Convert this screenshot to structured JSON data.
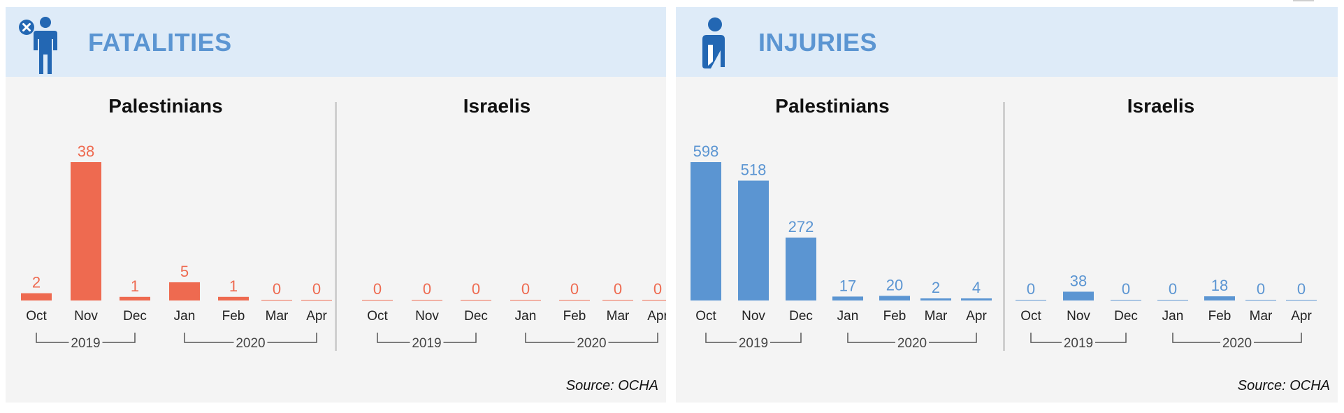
{
  "colors": {
    "fatalities": "#ee6a50",
    "injuries": "#5b95d2",
    "header_bg": "#deebf8",
    "panel_bg": "#f4f4f4",
    "title_blue": "#5b95d2",
    "icon_blue": "#2367b3"
  },
  "fatalities": {
    "title": "FATALITIES",
    "icon": "person-with-x-icon",
    "source": "Source: OCHA"
  },
  "injuries": {
    "title": "INJURIES",
    "icon": "injured-person-icon",
    "source": "Source: OCHA"
  },
  "chart_data": [
    {
      "type": "bar",
      "panel": "fatalities",
      "title": "Palestinians",
      "categories": [
        "Oct",
        "Nov",
        "Dec",
        "Jan",
        "Feb",
        "Mar",
        "Apr"
      ],
      "values": [
        2,
        38,
        1,
        5,
        1,
        0,
        0
      ],
      "year_groups": [
        {
          "label": "2019",
          "from": "Oct",
          "to": "Dec"
        },
        {
          "label": "2020",
          "from": "Jan",
          "to": "Apr"
        }
      ],
      "color": "#ee6a50",
      "xlabel": "",
      "ylabel": "",
      "data_labels": true,
      "grid": false
    },
    {
      "type": "bar",
      "panel": "fatalities",
      "title": "Israelis",
      "categories": [
        "Oct",
        "Nov",
        "Dec",
        "Jan",
        "Feb",
        "Mar",
        "Apr"
      ],
      "values": [
        0,
        0,
        0,
        0,
        0,
        0,
        0
      ],
      "year_groups": [
        {
          "label": "2019",
          "from": "Oct",
          "to": "Dec"
        },
        {
          "label": "2020",
          "from": "Jan",
          "to": "Apr"
        }
      ],
      "color": "#ee6a50",
      "xlabel": "",
      "ylabel": "",
      "data_labels": true,
      "grid": false
    },
    {
      "type": "bar",
      "panel": "injuries",
      "title": "Palestinians",
      "categories": [
        "Oct",
        "Nov",
        "Dec",
        "Jan",
        "Feb",
        "Mar",
        "Apr"
      ],
      "values": [
        598,
        518,
        272,
        17,
        20,
        2,
        4
      ],
      "year_groups": [
        {
          "label": "2019",
          "from": "Oct",
          "to": "Dec"
        },
        {
          "label": "2020",
          "from": "Jan",
          "to": "Apr"
        }
      ],
      "color": "#5b95d2",
      "xlabel": "",
      "ylabel": "",
      "data_labels": true,
      "grid": false
    },
    {
      "type": "bar",
      "panel": "injuries",
      "title": "Israelis",
      "categories": [
        "Oct",
        "Nov",
        "Dec",
        "Jan",
        "Feb",
        "Mar",
        "Apr"
      ],
      "values": [
        0,
        38,
        0,
        0,
        18,
        0,
        0
      ],
      "year_groups": [
        {
          "label": "2019",
          "from": "Oct",
          "to": "Dec"
        },
        {
          "label": "2020",
          "from": "Jan",
          "to": "Apr"
        }
      ],
      "color": "#5b95d2",
      "xlabel": "",
      "ylabel": "",
      "data_labels": true,
      "grid": false
    }
  ]
}
